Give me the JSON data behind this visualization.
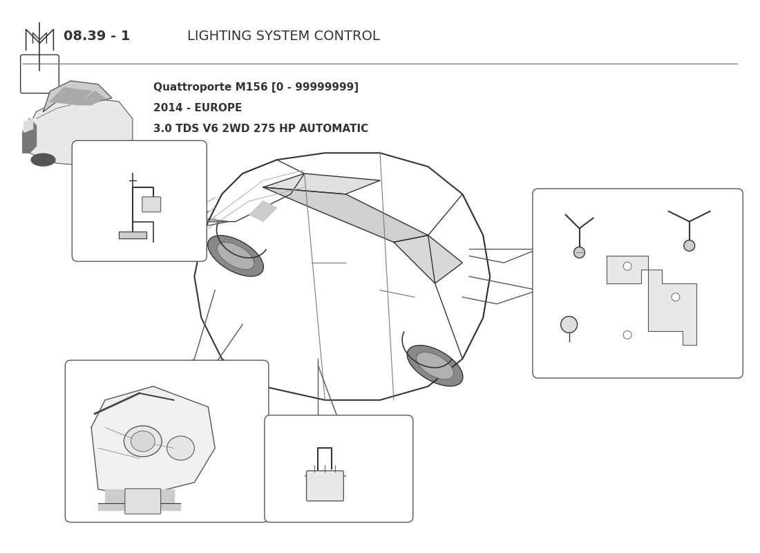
{
  "title_bold": "08.39 - 1",
  "title_normal": "LIGHTING SYSTEM CONTROL",
  "subtitle_line1": "Quattroporte M156 [0 - 99999999]",
  "subtitle_line2": "2014 - EUROPE",
  "subtitle_line3": "3.0 TDS V6 2WD 275 HP AUTOMATIC",
  "bg_color": "#ffffff",
  "line_color": "#333333",
  "title_fontsize": 14,
  "subtitle_fontsize": 11,
  "label_fontsize": 9
}
